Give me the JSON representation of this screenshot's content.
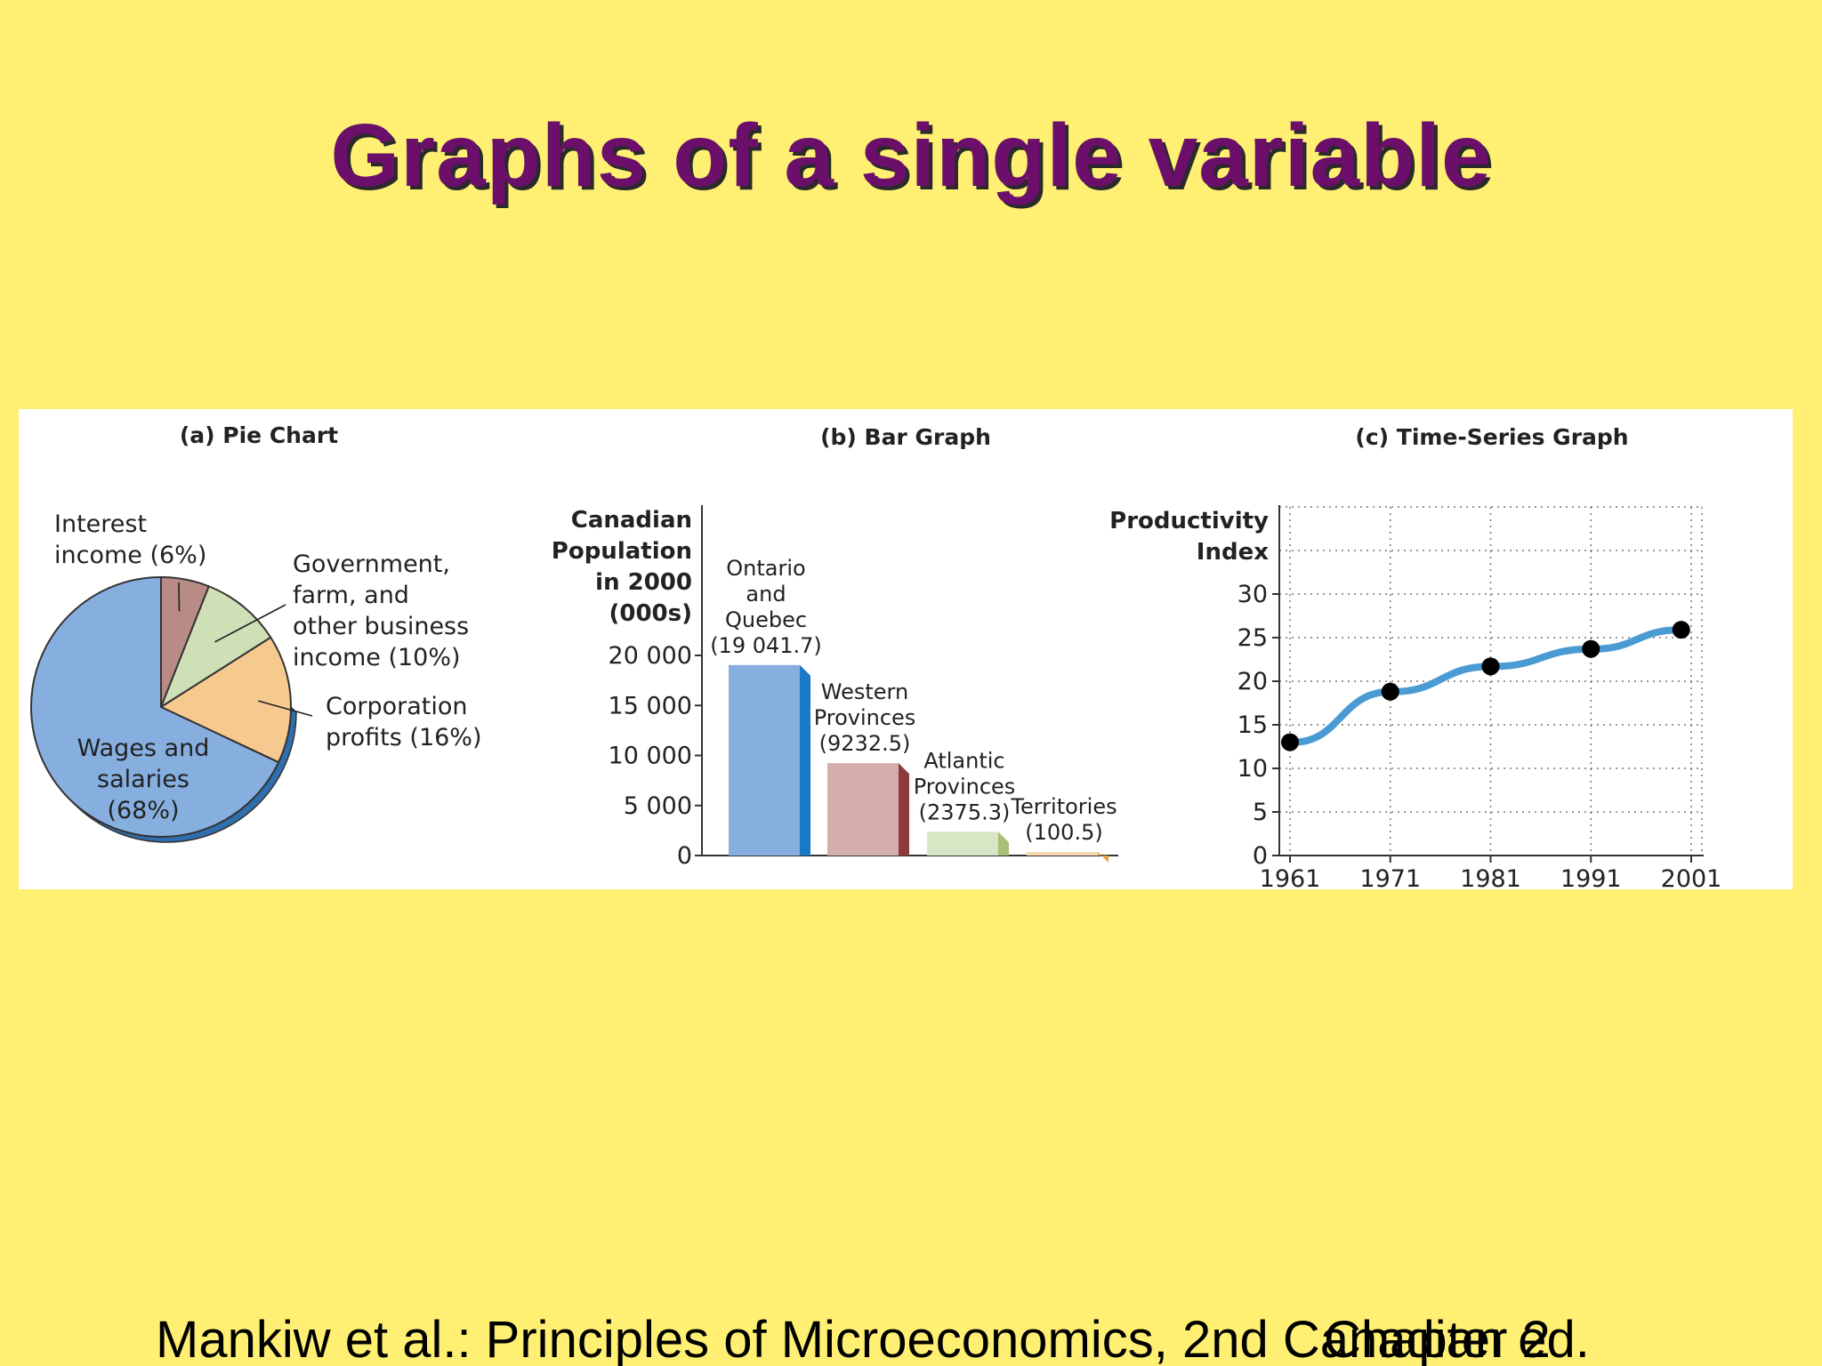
{
  "slide": {
    "title": "Graphs of a single variable",
    "footer_left": "Mankiw et al.: Principles of Microeconomics, 2nd Canadian ed.",
    "footer_right": "Chapter 2"
  },
  "chart_data": [
    {
      "type": "pie",
      "title": "(a) Pie Chart",
      "slices": [
        {
          "label": "Interest income (6%)",
          "label_lines": [
            "Interest",
            "income (6%)"
          ],
          "value": 6,
          "color": "#b98b87"
        },
        {
          "label": "Government, farm, and other business income (10%)",
          "label_lines": [
            "Government,",
            "farm, and",
            "other business",
            "income (10%)"
          ],
          "value": 10,
          "color": "#cfdfb6"
        },
        {
          "label": "Corporation profits (16%)",
          "label_lines": [
            "Corporation",
            "profits (16%)"
          ],
          "value": 16,
          "color": "#f6c98f"
        },
        {
          "label": "Wages and salaries (68%)",
          "label_lines": [
            "Wages and",
            "salaries",
            "(68%)"
          ],
          "value": 68,
          "color": "#86afe0"
        }
      ]
    },
    {
      "type": "bar",
      "title": "(b) Bar Graph",
      "ylabel_lines": [
        "Canadian",
        "Population",
        "in 2000",
        "(000s)"
      ],
      "ylim": [
        0,
        20000
      ],
      "yticks": [
        0,
        5000,
        10000,
        15000,
        20000
      ],
      "ytick_labels": [
        "0",
        "5 000",
        "10 000",
        "15 000",
        "20 000"
      ],
      "categories": [
        "Ontario and Quebec",
        "Western Provinces",
        "Atlantic Provinces",
        "Territories"
      ],
      "values": [
        19041.7,
        9232.5,
        2375.3,
        100.5
      ],
      "bar_labels": [
        [
          "Ontario",
          "and",
          "Quebec",
          "(19 041.7)"
        ],
        [
          "Western",
          "Provinces",
          "(9232.5)"
        ],
        [
          "Atlantic",
          "Provinces",
          "(2375.3)"
        ],
        [
          "Territories",
          "(100.5)"
        ]
      ],
      "colors": [
        {
          "face": "#86afe0",
          "side": "#1a78c4"
        },
        {
          "face": "#d3aeab",
          "side": "#8e3b40"
        },
        {
          "face": "#d9e6c6",
          "side": "#a6bf78"
        },
        {
          "face": "#f6d8b0",
          "side": "#f0a040"
        }
      ]
    },
    {
      "type": "line",
      "title": "(c) Time-Series Graph",
      "ylabel_lines": [
        "Productivity",
        "Index"
      ],
      "x": [
        1961,
        1971,
        1981,
        1991,
        2000
      ],
      "y": [
        13,
        18.8,
        21.7,
        23.7,
        25.9
      ],
      "xticks": [
        "1961",
        "1971",
        "1981",
        "1991",
        "2001"
      ],
      "yticks": [
        0,
        5,
        10,
        15,
        20,
        25,
        30
      ],
      "ylim": [
        0,
        40
      ],
      "xlim": [
        1961,
        2001
      ],
      "grid": true,
      "line_color": "#4a9ad4"
    }
  ]
}
